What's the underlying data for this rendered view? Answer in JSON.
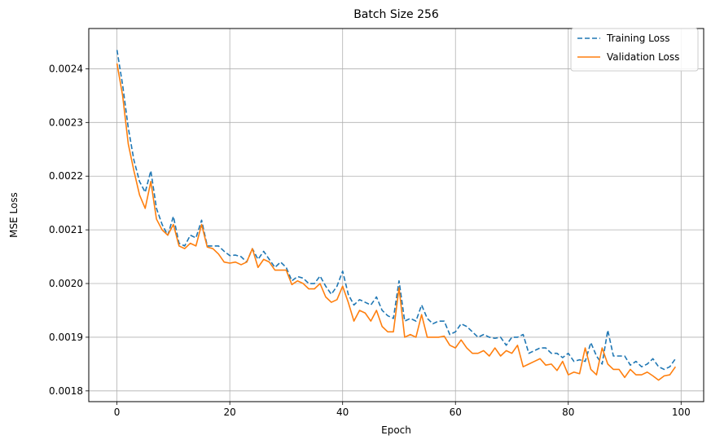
{
  "chart_data": {
    "type": "line",
    "title": "Batch Size 256",
    "xlabel": "Epoch",
    "ylabel": "MSE Loss",
    "xlim": [
      -5,
      104
    ],
    "ylim": [
      0.00178,
      0.002475
    ],
    "xticks": [
      0,
      20,
      40,
      60,
      80,
      100
    ],
    "xtick_labels": [
      "0",
      "20",
      "40",
      "60",
      "80",
      "100"
    ],
    "yticks": [
      0.0018,
      0.0019,
      0.002,
      0.0021,
      0.0022,
      0.0023,
      0.0024
    ],
    "ytick_labels": [
      "0.0018",
      "0.0019",
      "0.0020",
      "0.0021",
      "0.0022",
      "0.0023",
      "0.0024"
    ],
    "grid": true,
    "legend_position": "top-right",
    "x": [
      0,
      1,
      2,
      3,
      4,
      5,
      6,
      7,
      8,
      9,
      10,
      11,
      12,
      13,
      14,
      15,
      16,
      17,
      18,
      19,
      20,
      21,
      22,
      23,
      24,
      25,
      26,
      27,
      28,
      29,
      30,
      31,
      32,
      33,
      34,
      35,
      36,
      37,
      38,
      39,
      40,
      41,
      42,
      43,
      44,
      45,
      46,
      47,
      48,
      49,
      50,
      51,
      52,
      53,
      54,
      55,
      56,
      57,
      58,
      59,
      60,
      61,
      62,
      63,
      64,
      65,
      66,
      67,
      68,
      69,
      70,
      71,
      72,
      73,
      74,
      75,
      76,
      77,
      78,
      79,
      80,
      81,
      82,
      83,
      84,
      85,
      86,
      87,
      88,
      89,
      90,
      91,
      92,
      93,
      94,
      95,
      96,
      97,
      98,
      99
    ],
    "series": [
      {
        "name": "Training Loss",
        "color": "#1f77b4",
        "style": "dashed",
        "values": [
          0.002435,
          0.00237,
          0.00229,
          0.00223,
          0.00219,
          0.00217,
          0.00221,
          0.00214,
          0.00211,
          0.00209,
          0.002125,
          0.002075,
          0.00207,
          0.00209,
          0.002085,
          0.002118,
          0.00207,
          0.00207,
          0.00207,
          0.00206,
          0.002052,
          0.002053,
          0.00205,
          0.00204,
          0.002065,
          0.002045,
          0.00206,
          0.002045,
          0.00203,
          0.00204,
          0.00203,
          0.002005,
          0.002013,
          0.00201,
          0.002,
          0.002,
          0.002014,
          0.001995,
          0.00198,
          0.001995,
          0.002023,
          0.00198,
          0.00196,
          0.00197,
          0.001965,
          0.00196,
          0.001975,
          0.00195,
          0.00194,
          0.001935,
          0.002005,
          0.00193,
          0.001935,
          0.00193,
          0.00196,
          0.001935,
          0.001925,
          0.00193,
          0.00193,
          0.001905,
          0.00191,
          0.001925,
          0.00192,
          0.00191,
          0.0019,
          0.001905,
          0.0019,
          0.001898,
          0.0019,
          0.001885,
          0.0019,
          0.0019,
          0.001905,
          0.00187,
          0.001875,
          0.00188,
          0.00188,
          0.00187,
          0.00187,
          0.001862,
          0.00187,
          0.001855,
          0.001858,
          0.001855,
          0.00189,
          0.001865,
          0.00185,
          0.001913,
          0.001865,
          0.001865,
          0.001865,
          0.001848,
          0.001855,
          0.001845,
          0.00185,
          0.00186,
          0.001845,
          0.00184,
          0.001845,
          0.00186
        ]
      },
      {
        "name": "Validation Loss",
        "color": "#ff7f0e",
        "style": "solid",
        "values": [
          0.00241,
          0.00235,
          0.00226,
          0.00221,
          0.002165,
          0.00214,
          0.00219,
          0.00212,
          0.0021,
          0.00209,
          0.00211,
          0.00207,
          0.002065,
          0.002075,
          0.00207,
          0.00211,
          0.002068,
          0.002065,
          0.002055,
          0.00204,
          0.002038,
          0.00204,
          0.002035,
          0.00204,
          0.002065,
          0.00203,
          0.002045,
          0.00204,
          0.002025,
          0.002025,
          0.002025,
          0.001998,
          0.002005,
          0.002,
          0.00199,
          0.00199,
          0.002,
          0.001975,
          0.001965,
          0.00197,
          0.001995,
          0.001965,
          0.00193,
          0.00195,
          0.001945,
          0.00193,
          0.00195,
          0.00192,
          0.00191,
          0.00191,
          0.001992,
          0.0019,
          0.001905,
          0.0019,
          0.001942,
          0.0019,
          0.0019,
          0.0019,
          0.001902,
          0.001885,
          0.00188,
          0.001895,
          0.00188,
          0.00187,
          0.00187,
          0.001875,
          0.001865,
          0.00188,
          0.001865,
          0.001875,
          0.00187,
          0.001885,
          0.001845,
          0.00185,
          0.001855,
          0.00186,
          0.001848,
          0.00185,
          0.001838,
          0.001855,
          0.00183,
          0.001835,
          0.001832,
          0.00188,
          0.00184,
          0.00183,
          0.00188,
          0.00185,
          0.00184,
          0.00184,
          0.001825,
          0.00184,
          0.00183,
          0.00183,
          0.001835,
          0.001828,
          0.00182,
          0.001828,
          0.00183,
          0.001845
        ]
      }
    ]
  }
}
